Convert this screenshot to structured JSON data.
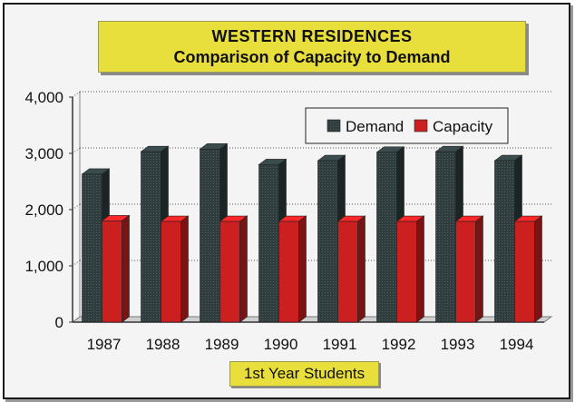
{
  "title": {
    "line1": "WESTERN  RESIDENCES",
    "line2": "Comparison of Capacity to Demand"
  },
  "colors": {
    "panel": "#e8de3c",
    "demand": "#2f3d3f",
    "capacity": "#cc1f1f",
    "plot_bg": "#f4f4f4"
  },
  "chart_data": {
    "type": "bar",
    "title": "WESTERN  RESIDENCES Comparison of Capacity to Demand",
    "xlabel": "1st Year Students",
    "ylabel": "",
    "categories": [
      "1987",
      "1988",
      "1989",
      "1990",
      "1991",
      "1992",
      "1993",
      "1994"
    ],
    "series": [
      {
        "name": "Demand",
        "color": "#2f3d3f",
        "values": [
          2630,
          3030,
          3075,
          2800,
          2870,
          3020,
          3030,
          2870
        ]
      },
      {
        "name": "Capacity",
        "color": "#cc1f1f",
        "values": [
          1800,
          1790,
          1790,
          1790,
          1790,
          1790,
          1790,
          1790
        ]
      }
    ],
    "ylim": [
      0,
      4000
    ],
    "yticks": [
      0,
      1000,
      2000,
      3000,
      4000
    ],
    "ytick_labels": [
      "0",
      "1,000",
      "2,000",
      "3,000",
      "4,000"
    ],
    "grid": true,
    "legend_position": "top-right"
  }
}
